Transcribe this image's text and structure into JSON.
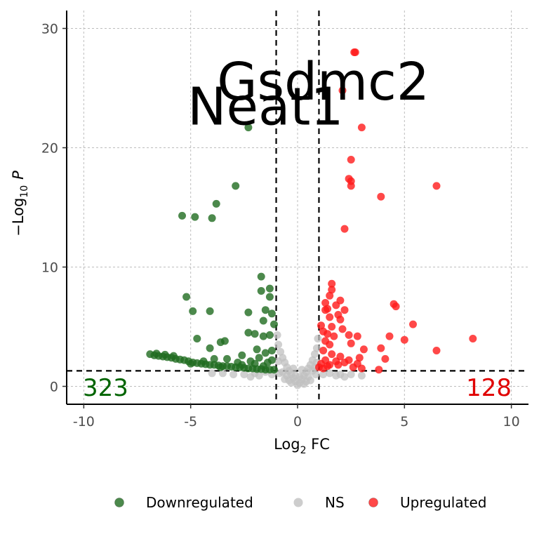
{
  "chart_data": {
    "type": "scatter",
    "title": "",
    "xlabel_main": "Log",
    "xlabel_sub": "2",
    "xlabel_tail": " FC",
    "ylabel_minus": "−",
    "ylabel_main": "Log",
    "ylabel_sub": "10",
    "ylabel_tail": "P",
    "xlim": [
      -10.8,
      10.8
    ],
    "ylim": [
      -1.5,
      31.5
    ],
    "xticks": [
      -10,
      -5,
      0,
      5,
      10
    ],
    "xtick_labels": [
      "-10",
      "-5",
      "0",
      "5",
      "10"
    ],
    "yticks": [
      0,
      10,
      20,
      30
    ],
    "ytick_labels": [
      "0",
      "10",
      "20",
      "30"
    ],
    "grid": true,
    "thresholds": {
      "fc_low": -1,
      "fc_high": 1,
      "p": 1.3
    },
    "colors": {
      "down": "#1f6b1f",
      "ns": "#c0c0c0",
      "up": "#ff1a1a",
      "down_text": "#006400",
      "up_text": "#e00000"
    },
    "legend": {
      "placement": "bottom",
      "entries": [
        {
          "name": "Downregulated",
          "color": "#1f6b1f"
        },
        {
          "name": "NS",
          "color": "#c0c0c0"
        },
        {
          "name": "Upregulated",
          "color": "#ff1a1a"
        }
      ]
    },
    "counts": {
      "down": "323",
      "up": "128"
    },
    "gene_labels": [
      {
        "text": "Gsdmc2",
        "x": 1.2,
        "y": 25.5
      },
      {
        "text": "Neat1",
        "x": -1.5,
        "y": 23.4
      }
    ],
    "series": [
      {
        "name": "Downregulated",
        "points": [
          [
            -2.3,
            21.7
          ],
          [
            -2.9,
            16.8
          ],
          [
            -3.8,
            15.3
          ],
          [
            -5.4,
            14.3
          ],
          [
            -4.8,
            14.2
          ],
          [
            -4.0,
            14.1
          ],
          [
            -1.7,
            9.2
          ],
          [
            -1.3,
            8.2
          ],
          [
            -1.7,
            8.0
          ],
          [
            -1.3,
            7.5
          ],
          [
            -5.2,
            7.5
          ],
          [
            -1.5,
            6.4
          ],
          [
            -4.9,
            6.3
          ],
          [
            -4.1,
            6.3
          ],
          [
            -2.3,
            6.2
          ],
          [
            -1.2,
            6.1
          ],
          [
            -1.6,
            5.5
          ],
          [
            -1.1,
            5.2
          ],
          [
            -2.3,
            4.5
          ],
          [
            -2.0,
            4.4
          ],
          [
            -1.3,
            4.3
          ],
          [
            -1.6,
            4.2
          ],
          [
            -4.7,
            4.0
          ],
          [
            -3.4,
            3.8
          ],
          [
            -3.6,
            3.7
          ],
          [
            -1.9,
            3.1
          ],
          [
            -1.2,
            3.0
          ],
          [
            -4.1,
            3.2
          ],
          [
            -2.6,
            2.6
          ],
          [
            -1.5,
            2.8
          ],
          [
            -6.9,
            2.7
          ],
          [
            -6.7,
            2.6
          ],
          [
            -6.5,
            2.55
          ],
          [
            -6.3,
            2.5
          ],
          [
            -6.1,
            2.45
          ],
          [
            -5.9,
            2.4
          ],
          [
            -5.7,
            2.3
          ],
          [
            -5.5,
            2.25
          ],
          [
            -5.3,
            2.2
          ],
          [
            -5.1,
            2.1
          ],
          [
            -4.9,
            2.0
          ],
          [
            -4.7,
            1.95
          ],
          [
            -4.5,
            1.9
          ],
          [
            -4.3,
            1.85
          ],
          [
            -4.1,
            1.8
          ],
          [
            -3.9,
            1.8
          ],
          [
            -3.7,
            1.75
          ],
          [
            -3.5,
            1.7
          ],
          [
            -3.3,
            1.7
          ],
          [
            -3.1,
            1.65
          ],
          [
            -2.9,
            1.6
          ],
          [
            -2.7,
            1.6
          ],
          [
            -2.5,
            1.55
          ],
          [
            -2.3,
            1.5
          ],
          [
            -2.1,
            1.5
          ],
          [
            -1.9,
            1.45
          ],
          [
            -1.7,
            1.45
          ],
          [
            -1.5,
            1.4
          ],
          [
            -1.3,
            1.4
          ],
          [
            -1.1,
            1.4
          ],
          [
            -3.3,
            2.3
          ],
          [
            -2.8,
            2.0
          ],
          [
            -2.2,
            2.1
          ],
          [
            -1.8,
            2.4
          ],
          [
            -1.4,
            2.0
          ],
          [
            -1.2,
            2.2
          ],
          [
            -2.6,
            1.8
          ],
          [
            -3.9,
            2.3
          ],
          [
            -6.6,
            2.75
          ],
          [
            -6.2,
            2.65
          ],
          [
            -5.8,
            2.55
          ],
          [
            -5.0,
            1.9
          ],
          [
            -4.4,
            2.1
          ],
          [
            -3.6,
            1.6
          ],
          [
            -2.0,
            1.9
          ],
          [
            -1.6,
            1.7
          ]
        ]
      },
      {
        "name": "NS",
        "points": [
          [
            0.0,
            0.1
          ],
          [
            0.1,
            0.3
          ],
          [
            -0.1,
            0.4
          ],
          [
            0.2,
            0.6
          ],
          [
            -0.2,
            0.7
          ],
          [
            0.3,
            0.9
          ],
          [
            -0.3,
            1.0
          ],
          [
            0.4,
            1.2
          ],
          [
            -0.4,
            1.3
          ],
          [
            0.5,
            1.5
          ],
          [
            -0.5,
            1.6
          ],
          [
            0.6,
            1.8
          ],
          [
            -0.6,
            2.0
          ],
          [
            0.7,
            2.2
          ],
          [
            -0.7,
            2.4
          ],
          [
            0.8,
            2.7
          ],
          [
            -0.8,
            2.9
          ],
          [
            0.9,
            3.2
          ],
          [
            -0.9,
            3.5
          ],
          [
            0.95,
            4.0
          ],
          [
            -0.95,
            4.3
          ],
          [
            0.85,
            1.0
          ],
          [
            -0.85,
            1.1
          ],
          [
            0.6,
            0.5
          ],
          [
            -0.6,
            0.6
          ],
          [
            0.3,
            0.2
          ],
          [
            -0.3,
            0.3
          ],
          [
            0.5,
            0.8
          ],
          [
            -0.5,
            0.9
          ],
          [
            0.2,
            1.4
          ],
          [
            -0.2,
            1.5
          ],
          [
            0.7,
            1.3
          ],
          [
            -0.7,
            1.2
          ],
          [
            0.9,
            2.0
          ],
          [
            -0.9,
            2.1
          ],
          [
            0.4,
            0.4
          ],
          [
            -0.4,
            0.5
          ],
          [
            0.1,
            0.8
          ],
          [
            -0.1,
            0.9
          ],
          [
            0.8,
            1.6
          ],
          [
            -1.5,
            1.2
          ],
          [
            -2.0,
            1.1
          ],
          [
            -2.5,
            1.0
          ],
          [
            -3.0,
            1.0
          ],
          [
            -3.5,
            1.1
          ],
          [
            -4.0,
            1.1
          ],
          [
            -1.2,
            1.0
          ],
          [
            -1.8,
            0.9
          ],
          [
            1.5,
            1.1
          ],
          [
            2.0,
            1.0
          ],
          [
            2.5,
            1.0
          ],
          [
            3.0,
            0.9
          ],
          [
            1.2,
            1.0
          ],
          [
            1.8,
            0.9
          ],
          [
            -2.2,
            0.8
          ],
          [
            2.2,
            0.8
          ]
        ]
      },
      {
        "name": "Upregulated",
        "points": [
          [
            2.7,
            28.0
          ],
          [
            2.65,
            28.0
          ],
          [
            2.1,
            24.8
          ],
          [
            3.0,
            21.7
          ],
          [
            2.5,
            19.0
          ],
          [
            2.4,
            17.4
          ],
          [
            2.5,
            17.2
          ],
          [
            2.5,
            16.8
          ],
          [
            6.5,
            16.8
          ],
          [
            3.9,
            15.9
          ],
          [
            2.2,
            13.2
          ],
          [
            1.6,
            8.6
          ],
          [
            1.6,
            8.1
          ],
          [
            1.5,
            7.6
          ],
          [
            2.0,
            7.2
          ],
          [
            1.3,
            7.0
          ],
          [
            1.8,
            6.8
          ],
          [
            4.5,
            6.9
          ],
          [
            4.6,
            6.7
          ],
          [
            1.4,
            6.5
          ],
          [
            1.3,
            6.4
          ],
          [
            2.2,
            6.4
          ],
          [
            1.9,
            6.0
          ],
          [
            1.5,
            5.8
          ],
          [
            2.0,
            5.6
          ],
          [
            5.4,
            5.2
          ],
          [
            1.1,
            5.1
          ],
          [
            1.6,
            5.0
          ],
          [
            2.1,
            4.8
          ],
          [
            1.2,
            4.6
          ],
          [
            1.4,
            4.4
          ],
          [
            1.7,
            4.2
          ],
          [
            2.4,
            4.3
          ],
          [
            2.8,
            4.2
          ],
          [
            4.3,
            4.2
          ],
          [
            5.0,
            3.9
          ],
          [
            6.5,
            3.0
          ],
          [
            8.2,
            4.0
          ],
          [
            1.3,
            3.8
          ],
          [
            1.5,
            3.5
          ],
          [
            2.5,
            3.6
          ],
          [
            3.9,
            3.2
          ],
          [
            3.1,
            3.1
          ],
          [
            1.2,
            3.0
          ],
          [
            1.6,
            2.7
          ],
          [
            2.0,
            2.5
          ],
          [
            4.1,
            2.3
          ],
          [
            2.9,
            2.4
          ],
          [
            1.3,
            2.2
          ],
          [
            1.8,
            2.1
          ],
          [
            2.2,
            2.0
          ],
          [
            1.1,
            1.9
          ],
          [
            1.5,
            1.8
          ],
          [
            2.6,
            1.6
          ],
          [
            3.0,
            1.5
          ],
          [
            3.8,
            1.4
          ],
          [
            1.2,
            1.5
          ],
          [
            1.4,
            1.7
          ],
          [
            2.4,
            2.2
          ],
          [
            1.9,
            1.8
          ],
          [
            1.0,
            1.6
          ],
          [
            2.8,
            1.9
          ]
        ]
      }
    ]
  }
}
